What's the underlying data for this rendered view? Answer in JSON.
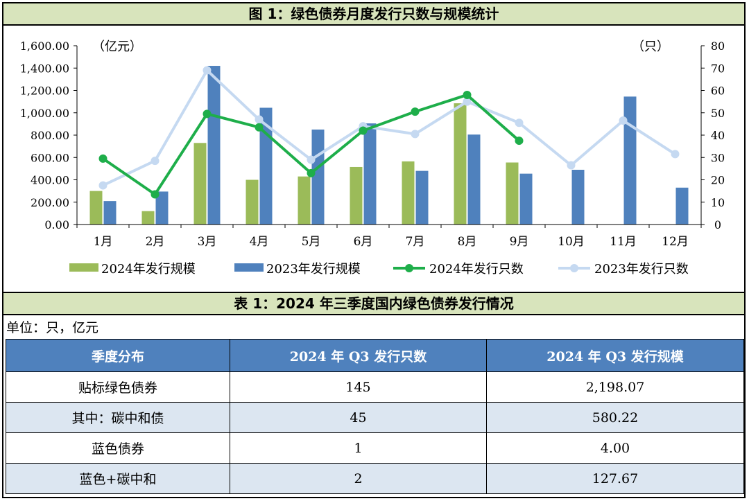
{
  "chart_title": "图 1：绿色债券月度发行只数与规模统计",
  "table_title": "表 1：2024 年三季度国内绿色债券发行情况",
  "unit_text": "单位：只，亿元",
  "colors": {
    "green_bar": "#9bbb59",
    "blue_bar": "#4f81bd",
    "green_line": "#1eae4a",
    "blue_line": "#c5d9f1",
    "banner_bg": "#d8e4bc",
    "table_header_bg": "#4f81bd",
    "table_alt_row": "#dce6f1"
  },
  "chart_data": {
    "type": "bar",
    "categories": [
      "1月",
      "2月",
      "3月",
      "4月",
      "5月",
      "6月",
      "7月",
      "8月",
      "9月",
      "10月",
      "11月",
      "12月"
    ],
    "y_left": {
      "unit": "（亿元）",
      "ylim": [
        0,
        1600
      ],
      "ticks": [
        "0.00",
        "200.00",
        "400.00",
        "600.00",
        "800.00",
        "1,000.00",
        "1,200.00",
        "1,400.00",
        "1,600.00"
      ]
    },
    "y_right": {
      "unit": "（只）",
      "ylim": [
        0,
        80
      ],
      "ticks": [
        "0",
        "10",
        "20",
        "30",
        "40",
        "50",
        "60",
        "70",
        "80"
      ]
    },
    "series": [
      {
        "name": "2024年发行规模",
        "kind": "bar",
        "axis": "left",
        "color": "#9bbb59",
        "values": [
          300,
          120,
          730,
          400,
          430,
          515,
          565,
          1085,
          555,
          null,
          null,
          null
        ]
      },
      {
        "name": "2023年发行规模",
        "kind": "bar",
        "axis": "left",
        "color": "#4f81bd",
        "values": [
          210,
          295,
          1420,
          1045,
          850,
          905,
          480,
          805,
          455,
          490,
          1145,
          330
        ]
      },
      {
        "name": "2024年发行只数",
        "kind": "line",
        "axis": "right",
        "color": "#1eae4a",
        "values": [
          29.5,
          13.5,
          49.5,
          43.5,
          23,
          42,
          50.5,
          58,
          37.5,
          null,
          null,
          null
        ]
      },
      {
        "name": "2023年发行只数",
        "kind": "line",
        "axis": "right",
        "color": "#c5d9f1",
        "values": [
          17.5,
          28.5,
          69,
          47,
          29,
          44,
          40.5,
          55,
          45.5,
          26.5,
          46.5,
          31.5
        ]
      }
    ],
    "legend_position": "bottom",
    "grid": false
  },
  "table": {
    "headers": [
      "季度分布",
      "2024 年 Q3 发行只数",
      "2024 年 Q3 发行规模"
    ],
    "rows": [
      [
        "贴标绿色债券",
        "145",
        "2,198.07"
      ],
      [
        "其中：碳中和债",
        "45",
        "580.22"
      ],
      [
        "蓝色债券",
        "1",
        "4.00"
      ],
      [
        "蓝色+碳中和",
        "2",
        "127.67"
      ]
    ]
  }
}
